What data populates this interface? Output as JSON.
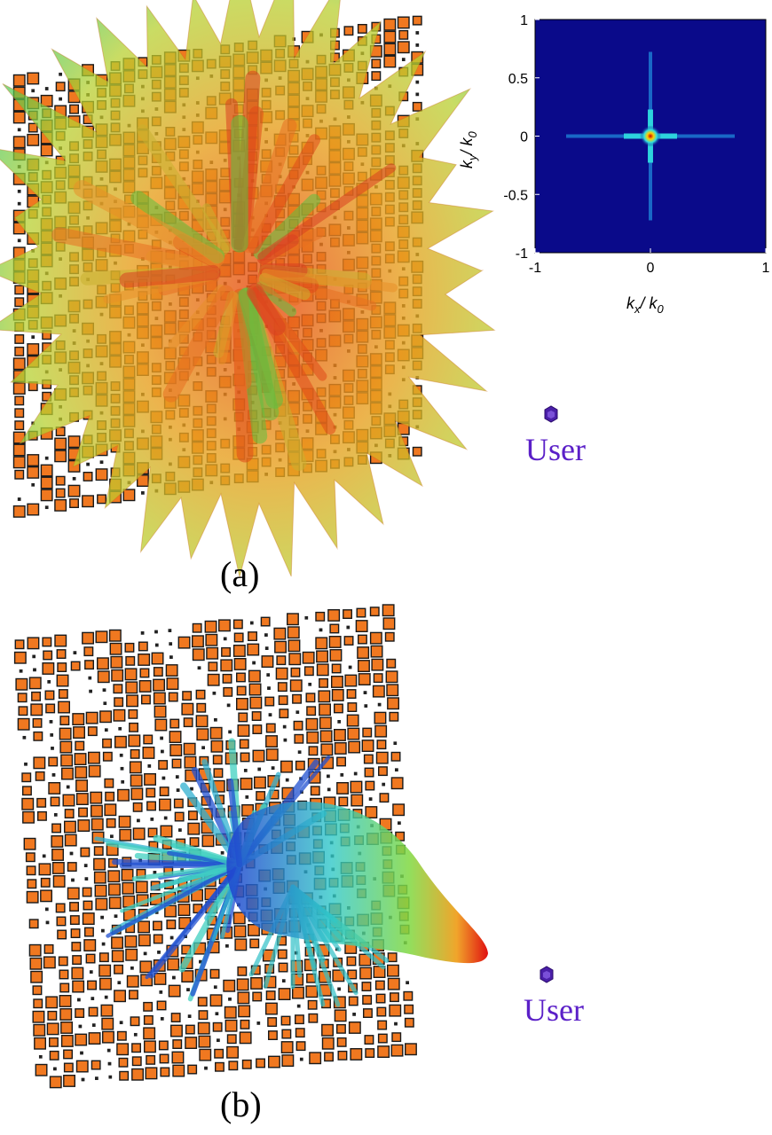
{
  "panel_a": {
    "caption": "(a)",
    "user_label": "User",
    "colors": {
      "tile": "#f07820",
      "tile_edge": "#1a1a1a",
      "user": "#4a1fa8",
      "user_text": "#5b20c8"
    },
    "inset": {
      "x_ticks": [
        "-1",
        "0",
        "1"
      ],
      "y_ticks": [
        "1",
        "0.5",
        "0",
        "-0.5",
        "-1"
      ],
      "xlabel": "kx / k0",
      "ylabel": "ky / k0",
      "background": "#0a0a8a"
    }
  },
  "panel_b": {
    "caption": "(b)",
    "user_label": "User"
  },
  "chart_data": {
    "type": "heatmap",
    "title": "",
    "xlabel": "kx / k0",
    "ylabel": "ky / k0",
    "xlim": [
      -1,
      1
    ],
    "ylim": [
      -1,
      1
    ],
    "x_ticks": [
      -1,
      0,
      1
    ],
    "y_ticks": [
      -1,
      -0.5,
      0,
      0.5,
      1
    ],
    "peak": {
      "x": 0,
      "y": 0
    }
  }
}
